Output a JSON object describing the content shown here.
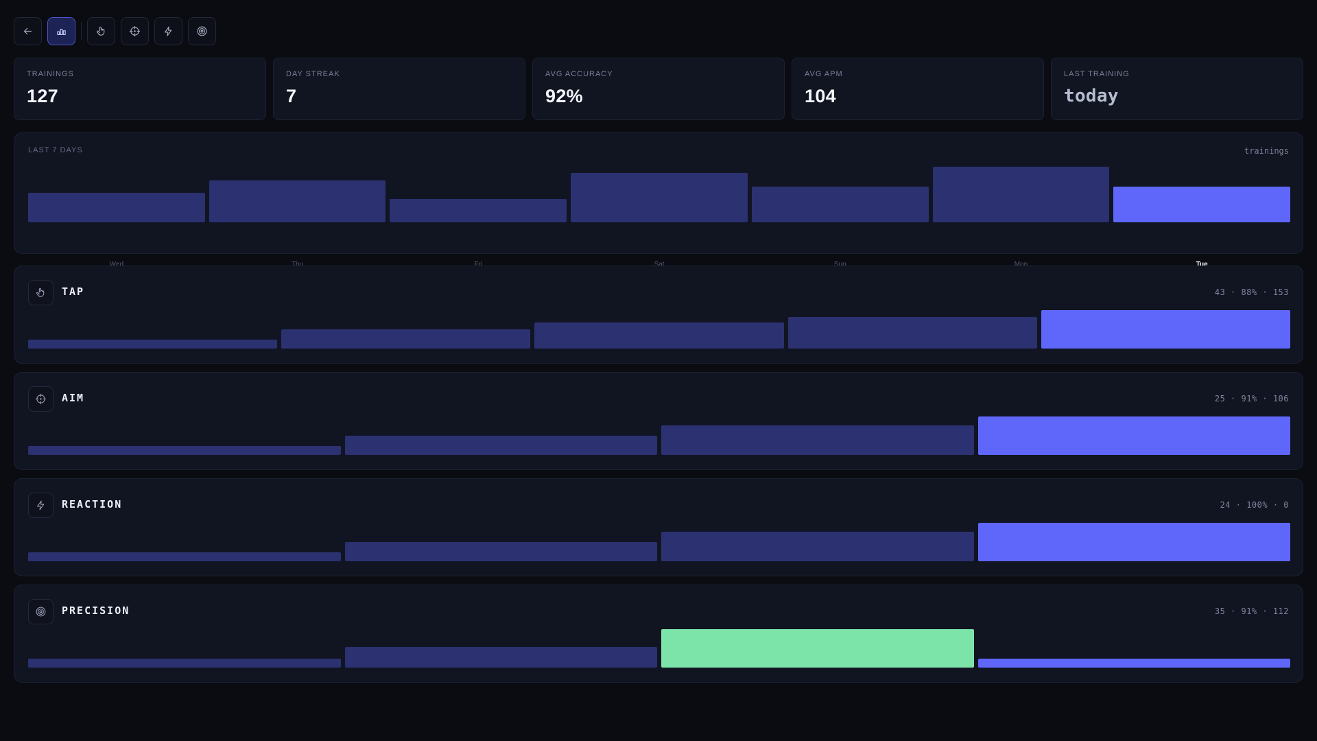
{
  "toolbar": {
    "buttons": [
      {
        "icon": "back-arrow-icon"
      },
      {
        "icon": "bar-chart-icon",
        "active": true
      },
      {
        "icon": "hand-pointer-icon"
      },
      {
        "icon": "crosshair-icon"
      },
      {
        "icon": "lightning-icon"
      },
      {
        "icon": "target-icon"
      }
    ]
  },
  "stats": [
    {
      "label": "TRAININGS",
      "value": "127"
    },
    {
      "label": "DAY STREAK",
      "value": "7"
    },
    {
      "label": "AVG ACCURACY",
      "value": "92%"
    },
    {
      "label": "AVG APM",
      "value": "104"
    },
    {
      "label": "LAST TRAINING",
      "value": "today"
    }
  ],
  "week": {
    "title": "LAST 7 DAYS",
    "unit": "trainings",
    "highlight_day": "Tue"
  },
  "games": [
    {
      "name": "TAP",
      "icon": "hand-pointer-icon",
      "stats": "43 · 88% · 153"
    },
    {
      "name": "AIM",
      "icon": "crosshair-icon",
      "stats": "25 · 91% · 106"
    },
    {
      "name": "REACTION",
      "icon": "lightning-icon",
      "stats": "24 · 100% · 0"
    },
    {
      "name": "PRECISION",
      "icon": "target-icon",
      "stats": "35 · 91% · 112"
    }
  ],
  "colors": {
    "background": "#0a0c12",
    "card": "#111522",
    "bar": "#2c3172",
    "accent": "#5f67fb",
    "best": "#7ce4a8"
  },
  "chart_data": [
    {
      "type": "bar",
      "title": "LAST 7 DAYS",
      "ylabel": "trainings",
      "categories": [
        "Wed",
        "Thu",
        "Fri",
        "Sat",
        "Sun",
        "Mon",
        "Tue"
      ],
      "values": [
        48,
        68,
        38,
        80,
        58,
        90,
        58
      ],
      "highlight": "Tue"
    },
    {
      "type": "bar",
      "title": "TAP",
      "values": [
        13,
        28,
        37,
        45,
        55
      ],
      "highlight_index": 4
    },
    {
      "type": "bar",
      "title": "AIM",
      "values": [
        13,
        28,
        42,
        55
      ],
      "highlight_index": 3
    },
    {
      "type": "bar",
      "title": "REACTION",
      "values": [
        13,
        28,
        42,
        55
      ],
      "highlight_index": 3
    },
    {
      "type": "bar",
      "title": "PRECISION",
      "values": [
        13,
        29,
        55,
        13
      ],
      "best_index": 2,
      "highlight_index": 3
    }
  ]
}
